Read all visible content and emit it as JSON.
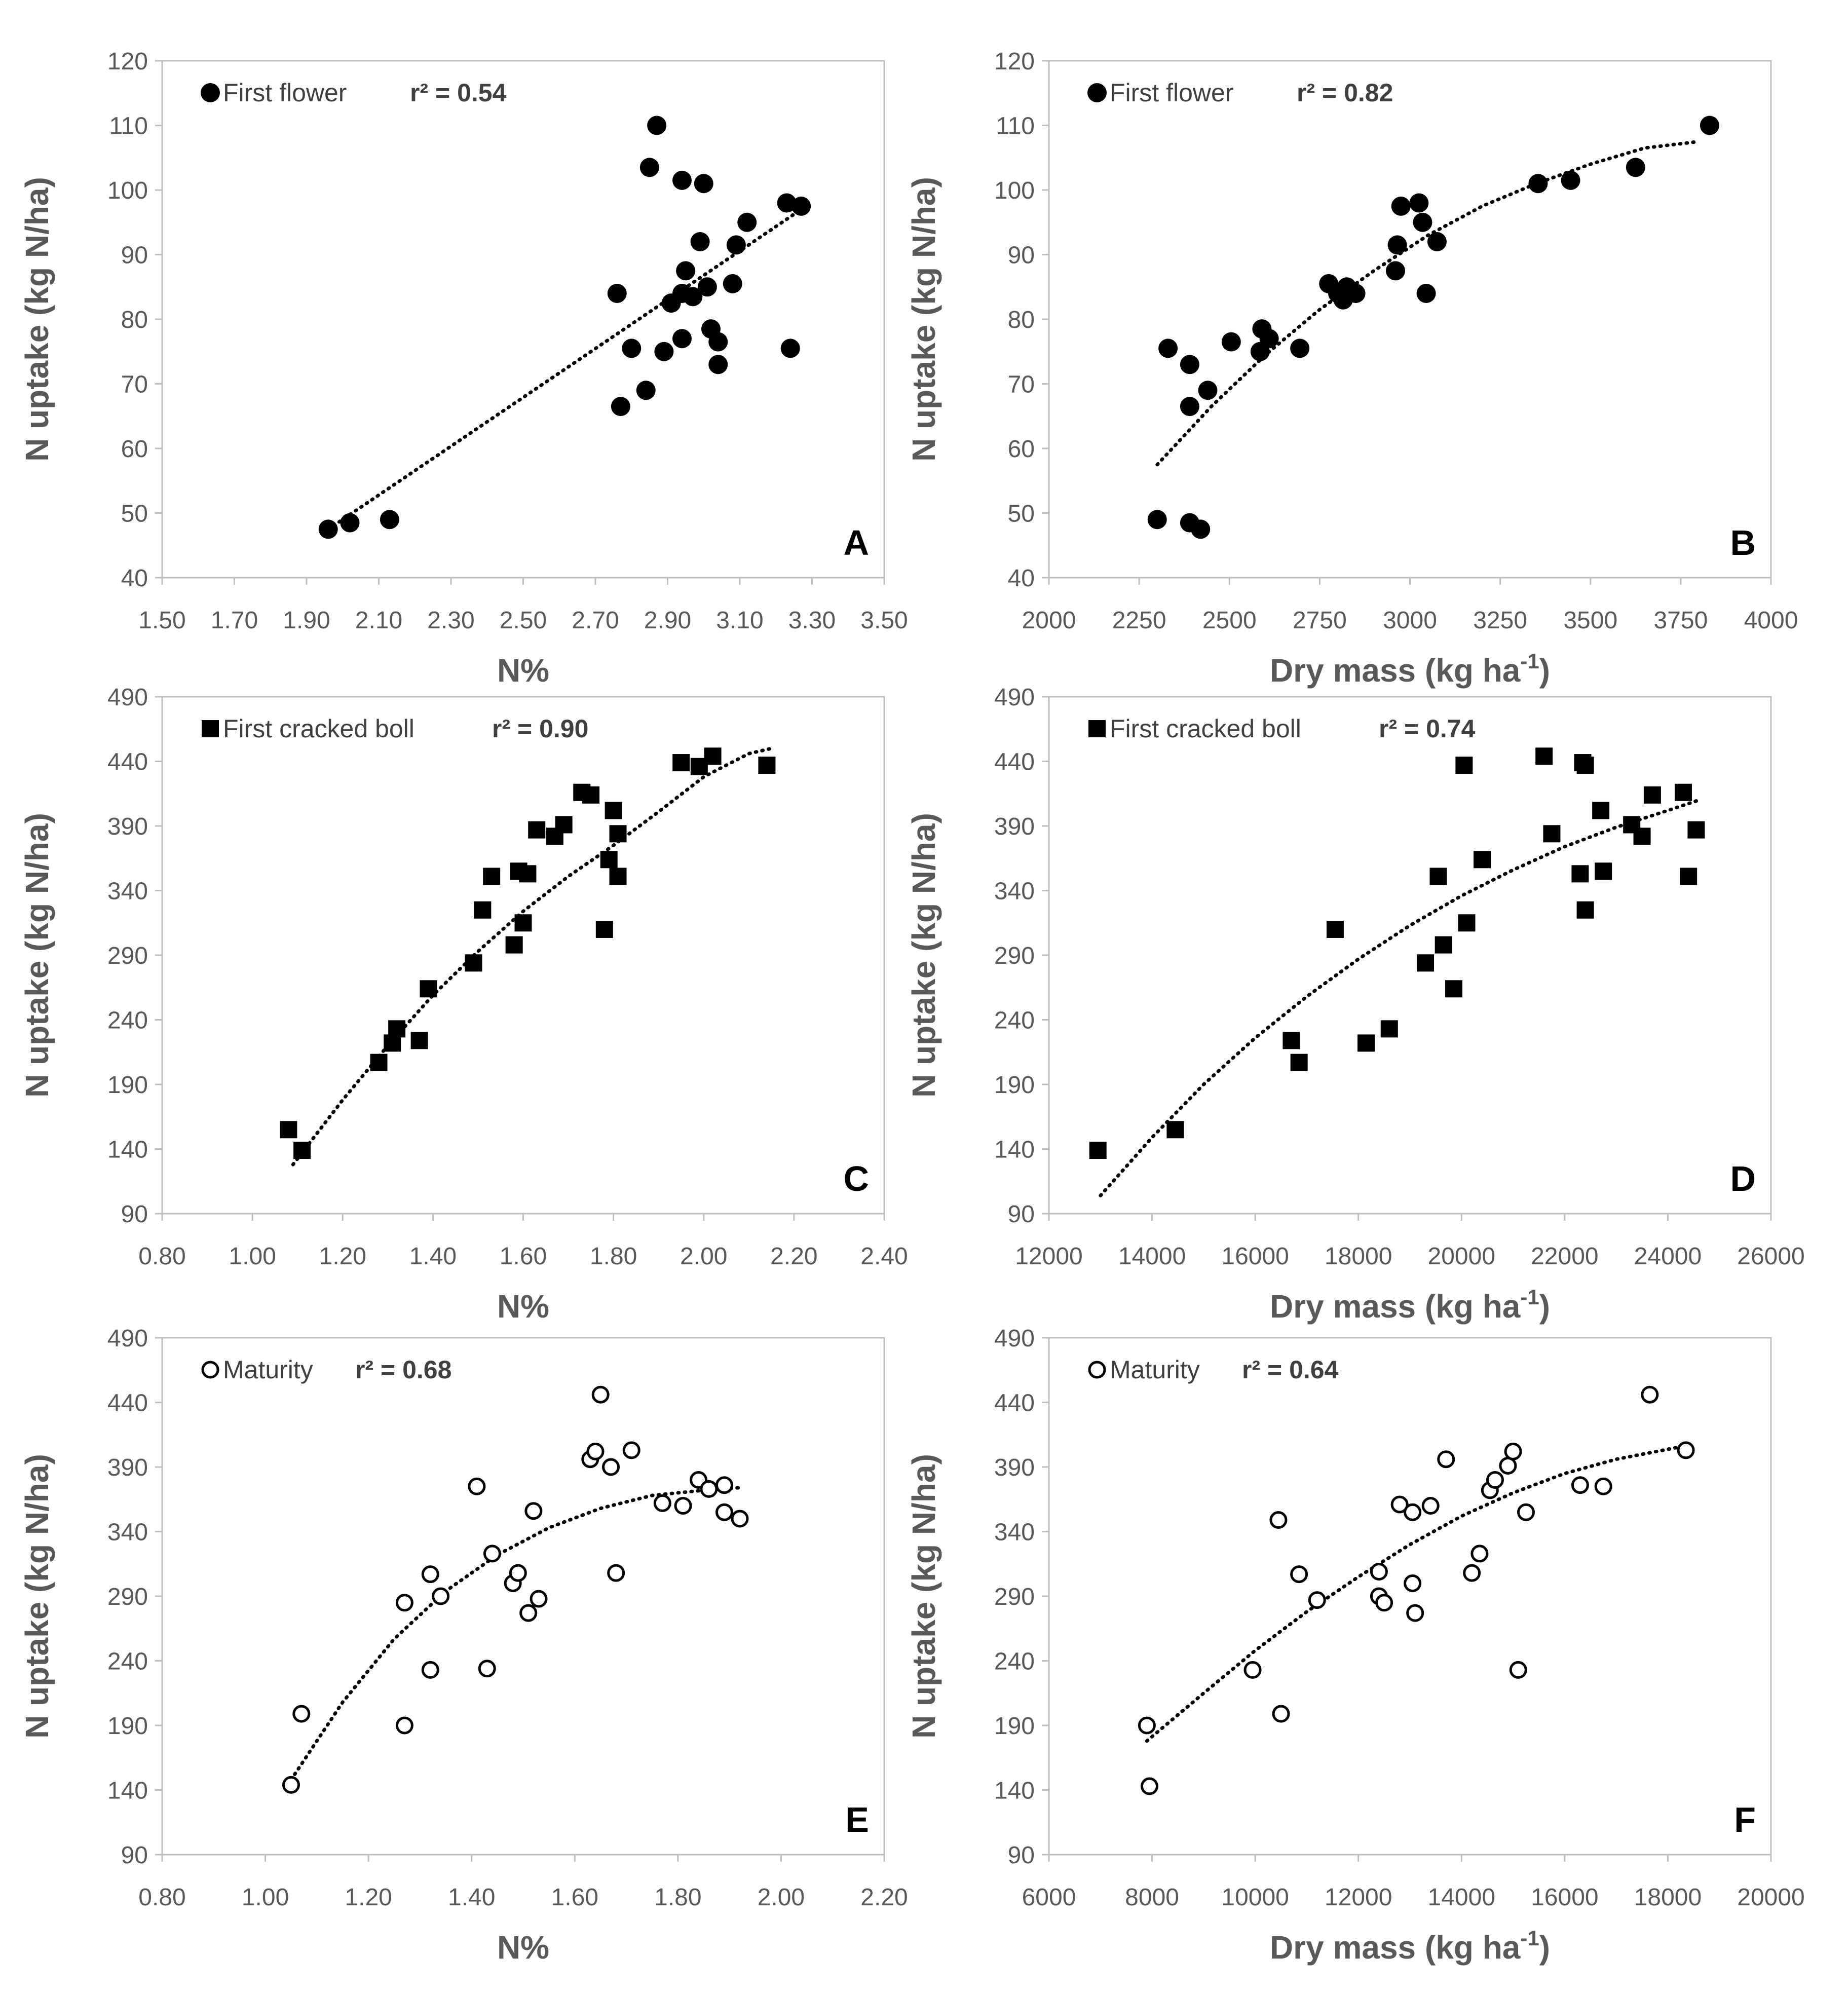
{
  "chart_data": [
    {
      "panel": "A",
      "type": "scatter",
      "marker": "filled-circle",
      "legend": "First flower",
      "r2": "r² = 0.54",
      "xlabel": "N%",
      "xlabel_sup": "",
      "xlabel_post": "",
      "ylabel": "N uptake (kg N/ha)",
      "xlim": [
        1.5,
        3.5
      ],
      "ylim": [
        40,
        120
      ],
      "xticks": [
        "1.50",
        "1.70",
        "1.90",
        "2.10",
        "2.30",
        "2.50",
        "2.70",
        "2.90",
        "3.10",
        "3.30",
        "3.50"
      ],
      "yticks": [
        "40",
        "50",
        "60",
        "70",
        "80",
        "90",
        "100",
        "110",
        "120"
      ],
      "points": [
        [
          1.96,
          47.5
        ],
        [
          2.02,
          48.5
        ],
        [
          2.13,
          49
        ],
        [
          2.76,
          84
        ],
        [
          2.77,
          66.5
        ],
        [
          2.8,
          75.5
        ],
        [
          2.84,
          69
        ],
        [
          2.85,
          103.5
        ],
        [
          2.87,
          110
        ],
        [
          2.89,
          75
        ],
        [
          2.91,
          82.5
        ],
        [
          2.94,
          101.5
        ],
        [
          2.94,
          84
        ],
        [
          2.94,
          77
        ],
        [
          2.95,
          87.5
        ],
        [
          2.97,
          83.5
        ],
        [
          2.99,
          92
        ],
        [
          3.0,
          101
        ],
        [
          3.01,
          85
        ],
        [
          3.02,
          78.5
        ],
        [
          3.04,
          73
        ],
        [
          3.04,
          76.5
        ],
        [
          3.08,
          85.5
        ],
        [
          3.09,
          91.5
        ],
        [
          3.12,
          95
        ],
        [
          3.23,
          98
        ],
        [
          3.24,
          75.5
        ],
        [
          3.27,
          97.5
        ]
      ],
      "trend": [
        [
          1.96,
          47.5
        ],
        [
          3.27,
          97
        ]
      ],
      "trend_type": "linear"
    },
    {
      "panel": "B",
      "type": "scatter",
      "marker": "filled-circle",
      "legend": "First flower",
      "r2": "r² = 0.82",
      "xlabel": "Dry mass (kg ha",
      "xlabel_sup": "-1",
      "xlabel_post": ")",
      "ylabel": "N uptake (kg N/ha)",
      "xlim": [
        2000,
        4000
      ],
      "ylim": [
        40,
        120
      ],
      "xticks": [
        "2000",
        "2250",
        "2500",
        "2750",
        "3000",
        "3250",
        "3500",
        "3750",
        "4000"
      ],
      "yticks": [
        "40",
        "50",
        "60",
        "70",
        "80",
        "90",
        "100",
        "110",
        "120"
      ],
      "points": [
        [
          2300,
          49
        ],
        [
          2330,
          75.5
        ],
        [
          2390,
          48.5
        ],
        [
          2390,
          73
        ],
        [
          2390,
          66.5
        ],
        [
          2420,
          47.5
        ],
        [
          2440,
          69
        ],
        [
          2505,
          76.5
        ],
        [
          2585,
          75
        ],
        [
          2590,
          78.5
        ],
        [
          2610,
          77
        ],
        [
          2695,
          75.5
        ],
        [
          2775,
          85.5
        ],
        [
          2800,
          84
        ],
        [
          2815,
          83
        ],
        [
          2825,
          85
        ],
        [
          2850,
          84
        ],
        [
          2960,
          87.5
        ],
        [
          2965,
          91.5
        ],
        [
          2975,
          97.5
        ],
        [
          3025,
          98
        ],
        [
          3035,
          95
        ],
        [
          3045,
          84
        ],
        [
          3075,
          92
        ],
        [
          3355,
          101
        ],
        [
          3445,
          101.5
        ],
        [
          3625,
          103.5
        ],
        [
          3830,
          110
        ]
      ],
      "trend": [
        [
          2300,
          57.5
        ],
        [
          2450,
          66.5
        ],
        [
          2600,
          74.5
        ],
        [
          2750,
          81.5
        ],
        [
          2900,
          87.5
        ],
        [
          3050,
          93
        ],
        [
          3200,
          97.5
        ],
        [
          3350,
          101
        ],
        [
          3500,
          104
        ],
        [
          3650,
          106.5
        ],
        [
          3800,
          107.5
        ]
      ],
      "trend_type": "polynomial"
    },
    {
      "panel": "C",
      "type": "scatter",
      "marker": "filled-square",
      "legend": "First cracked boll",
      "r2": "r² = 0.90",
      "xlabel": "N%",
      "xlabel_sup": "",
      "xlabel_post": "",
      "ylabel": "N uptake (kg N/ha)",
      "xlim": [
        0.8,
        2.4
      ],
      "ylim": [
        90,
        490
      ],
      "xticks": [
        "0.80",
        "1.00",
        "1.20",
        "1.40",
        "1.60",
        "1.80",
        "2.00",
        "2.20",
        "2.40"
      ],
      "yticks": [
        "90",
        "140",
        "190",
        "240",
        "290",
        "340",
        "390",
        "440",
        "490"
      ],
      "points": [
        [
          1.08,
          155
        ],
        [
          1.11,
          139
        ],
        [
          1.28,
          207
        ],
        [
          1.31,
          222
        ],
        [
          1.32,
          233
        ],
        [
          1.37,
          224
        ],
        [
          1.39,
          264
        ],
        [
          1.49,
          284
        ],
        [
          1.51,
          325
        ],
        [
          1.53,
          351
        ],
        [
          1.58,
          298
        ],
        [
          1.59,
          355
        ],
        [
          1.6,
          315
        ],
        [
          1.61,
          353
        ],
        [
          1.63,
          387
        ],
        [
          1.67,
          382
        ],
        [
          1.69,
          391
        ],
        [
          1.73,
          416
        ],
        [
          1.75,
          414
        ],
        [
          1.78,
          310
        ],
        [
          1.79,
          364
        ],
        [
          1.8,
          402
        ],
        [
          1.81,
          351
        ],
        [
          1.81,
          384
        ],
        [
          1.95,
          439
        ],
        [
          1.99,
          436
        ],
        [
          2.02,
          444
        ],
        [
          2.14,
          437
        ]
      ],
      "trend": [
        [
          1.09,
          128
        ],
        [
          1.2,
          178
        ],
        [
          1.3,
          220
        ],
        [
          1.4,
          259
        ],
        [
          1.5,
          293
        ],
        [
          1.6,
          324
        ],
        [
          1.7,
          351
        ],
        [
          1.8,
          375
        ],
        [
          1.9,
          401
        ],
        [
          2.0,
          428
        ],
        [
          2.1,
          446
        ],
        [
          2.15,
          450
        ]
      ],
      "trend_type": "polynomial"
    },
    {
      "panel": "D",
      "type": "scatter",
      "marker": "filled-square",
      "legend": "First cracked boll",
      "r2": "r² = 0.74",
      "xlabel": "Dry mass (kg ha",
      "xlabel_sup": "-1",
      "xlabel_post": ")",
      "ylabel": "N uptake (kg N/ha)",
      "xlim": [
        12000,
        26000
      ],
      "ylim": [
        90,
        490
      ],
      "xticks": [
        "12000",
        "14000",
        "16000",
        "18000",
        "20000",
        "22000",
        "24000",
        "26000"
      ],
      "yticks": [
        "90",
        "140",
        "190",
        "240",
        "290",
        "340",
        "390",
        "440",
        "490"
      ],
      "points": [
        [
          12950,
          139
        ],
        [
          14450,
          155
        ],
        [
          16700,
          224
        ],
        [
          16850,
          207
        ],
        [
          17550,
          310
        ],
        [
          18150,
          222
        ],
        [
          18600,
          233
        ],
        [
          19300,
          284
        ],
        [
          19550,
          351
        ],
        [
          19650,
          298
        ],
        [
          19850,
          264
        ],
        [
          20050,
          437
        ],
        [
          20100,
          315
        ],
        [
          20400,
          364
        ],
        [
          21600,
          444
        ],
        [
          21750,
          384
        ],
        [
          22300,
          353
        ],
        [
          22350,
          439
        ],
        [
          22400,
          437
        ],
        [
          22400,
          325
        ],
        [
          22700,
          402
        ],
        [
          22750,
          355
        ],
        [
          23300,
          391
        ],
        [
          23500,
          382
        ],
        [
          23700,
          414
        ],
        [
          24300,
          416
        ],
        [
          24400,
          351
        ],
        [
          24550,
          387
        ]
      ],
      "trend": [
        [
          13000,
          104
        ],
        [
          14000,
          149
        ],
        [
          15000,
          190
        ],
        [
          16000,
          226
        ],
        [
          17000,
          258
        ],
        [
          18000,
          287
        ],
        [
          19000,
          313
        ],
        [
          20000,
          336
        ],
        [
          21000,
          356
        ],
        [
          22000,
          374
        ],
        [
          23000,
          389
        ],
        [
          24000,
          402
        ],
        [
          24600,
          410
        ]
      ],
      "trend_type": "polynomial"
    },
    {
      "panel": "E",
      "type": "scatter",
      "marker": "open-circle",
      "legend": "Maturity",
      "r2": "r² = 0.68",
      "xlabel": "N%",
      "xlabel_sup": "",
      "xlabel_post": "",
      "ylabel": "N uptake (kg N/ha)",
      "xlim": [
        0.8,
        2.2
      ],
      "ylim": [
        90,
        490
      ],
      "xticks": [
        "0.80",
        "1.00",
        "1.20",
        "1.40",
        "1.60",
        "1.80",
        "2.00",
        "2.20"
      ],
      "yticks": [
        "90",
        "140",
        "190",
        "240",
        "290",
        "340",
        "390",
        "440",
        "490"
      ],
      "points": [
        [
          1.05,
          144
        ],
        [
          1.07,
          199
        ],
        [
          1.27,
          190
        ],
        [
          1.27,
          285
        ],
        [
          1.32,
          233
        ],
        [
          1.32,
          307
        ],
        [
          1.34,
          290
        ],
        [
          1.41,
          375
        ],
        [
          1.43,
          234
        ],
        [
          1.44,
          323
        ],
        [
          1.48,
          300
        ],
        [
          1.49,
          308
        ],
        [
          1.51,
          277
        ],
        [
          1.52,
          356
        ],
        [
          1.53,
          288
        ],
        [
          1.63,
          396
        ],
        [
          1.64,
          402
        ],
        [
          1.65,
          446
        ],
        [
          1.67,
          390
        ],
        [
          1.68,
          308
        ],
        [
          1.71,
          403
        ],
        [
          1.77,
          362
        ],
        [
          1.81,
          360
        ],
        [
          1.84,
          380
        ],
        [
          1.86,
          373
        ],
        [
          1.89,
          376
        ],
        [
          1.89,
          355
        ],
        [
          1.92,
          350
        ]
      ],
      "trend": [
        [
          1.05,
          148
        ],
        [
          1.15,
          208
        ],
        [
          1.25,
          257
        ],
        [
          1.35,
          294
        ],
        [
          1.45,
          322
        ],
        [
          1.55,
          343
        ],
        [
          1.65,
          358
        ],
        [
          1.75,
          368
        ],
        [
          1.85,
          372
        ],
        [
          1.92,
          374
        ]
      ],
      "trend_type": "polynomial"
    },
    {
      "panel": "F",
      "type": "scatter",
      "marker": "open-circle",
      "legend": "Maturity",
      "r2": "r² = 0.64",
      "xlabel": "Dry mass (kg ha",
      "xlabel_sup": "-1",
      "xlabel_post": ")",
      "ylabel": "N uptake (kg N/ha)",
      "xlim": [
        6000,
        20000
      ],
      "ylim": [
        90,
        490
      ],
      "xticks": [
        "6000",
        "8000",
        "10000",
        "12000",
        "14000",
        "16000",
        "18000",
        "20000"
      ],
      "yticks": [
        "90",
        "140",
        "190",
        "240",
        "290",
        "340",
        "390",
        "440",
        "490"
      ],
      "points": [
        [
          7900,
          190
        ],
        [
          7950,
          143
        ],
        [
          9950,
          233
        ],
        [
          10450,
          349
        ],
        [
          10500,
          199
        ],
        [
          10850,
          307
        ],
        [
          11200,
          287
        ],
        [
          12400,
          309
        ],
        [
          12400,
          290
        ],
        [
          12500,
          285
        ],
        [
          12800,
          361
        ],
        [
          13050,
          355
        ],
        [
          13050,
          300
        ],
        [
          13100,
          277
        ],
        [
          13400,
          360
        ],
        [
          13700,
          396
        ],
        [
          14200,
          308
        ],
        [
          14350,
          323
        ],
        [
          14550,
          372
        ],
        [
          14650,
          380
        ],
        [
          14900,
          391
        ],
        [
          15000,
          402
        ],
        [
          15100,
          233
        ],
        [
          15250,
          355
        ],
        [
          16300,
          376
        ],
        [
          16750,
          375
        ],
        [
          17650,
          446
        ],
        [
          18350,
          403
        ]
      ],
      "trend": [
        [
          7900,
          178
        ],
        [
          9000,
          215
        ],
        [
          10000,
          248
        ],
        [
          11000,
          278
        ],
        [
          12000,
          305
        ],
        [
          13000,
          330
        ],
        [
          14000,
          352
        ],
        [
          15000,
          370
        ],
        [
          16000,
          385
        ],
        [
          17000,
          396
        ],
        [
          18300,
          406
        ]
      ],
      "trend_type": "polynomial"
    }
  ]
}
